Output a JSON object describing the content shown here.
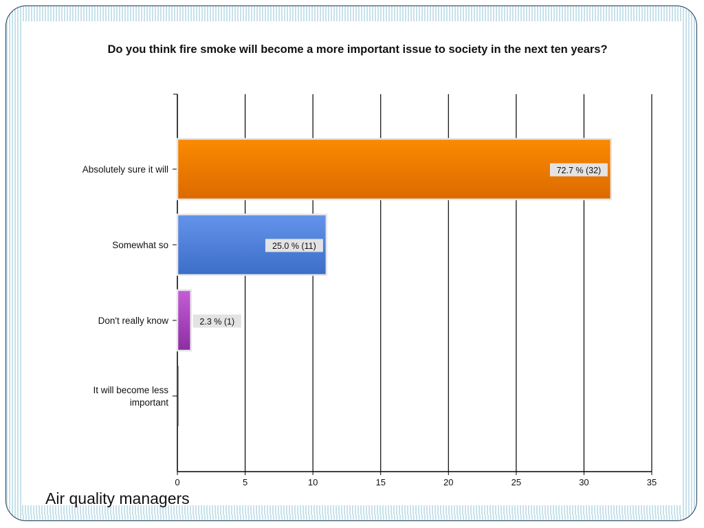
{
  "slide": {
    "caption": "Air quality managers"
  },
  "colors": {
    "frame_border": "#1f3b57",
    "frame_stripe": "#c6e1ea",
    "label_box": "#e3e3e3"
  },
  "chart_data": {
    "type": "bar",
    "orientation": "horizontal",
    "title": "Do you think fire smoke will become a more important issue to society in the next ten years?",
    "xlabel": "",
    "ylabel": "",
    "categories": [
      "Absolutely sure it will",
      "Somewhat so",
      "Don't really know",
      "It will become less important"
    ],
    "values": [
      32,
      11,
      1,
      0
    ],
    "percent_labels": [
      "72.7 % (32)",
      "25.0 % (11)",
      "2.3 % (1)",
      ""
    ],
    "bar_colors": [
      {
        "top": "#fc8a00",
        "bottom": "#db6a00"
      },
      {
        "top": "#6493ea",
        "bottom": "#3c6ec8"
      },
      {
        "top": "#c55ed6",
        "bottom": "#8a2ea0"
      },
      {
        "top": "#777777",
        "bottom": "#555555"
      }
    ],
    "xlim": [
      0,
      35
    ],
    "xticks": [
      0,
      5,
      10,
      15,
      20,
      25,
      30,
      35
    ],
    "grid": "vertical",
    "legend": "none"
  }
}
